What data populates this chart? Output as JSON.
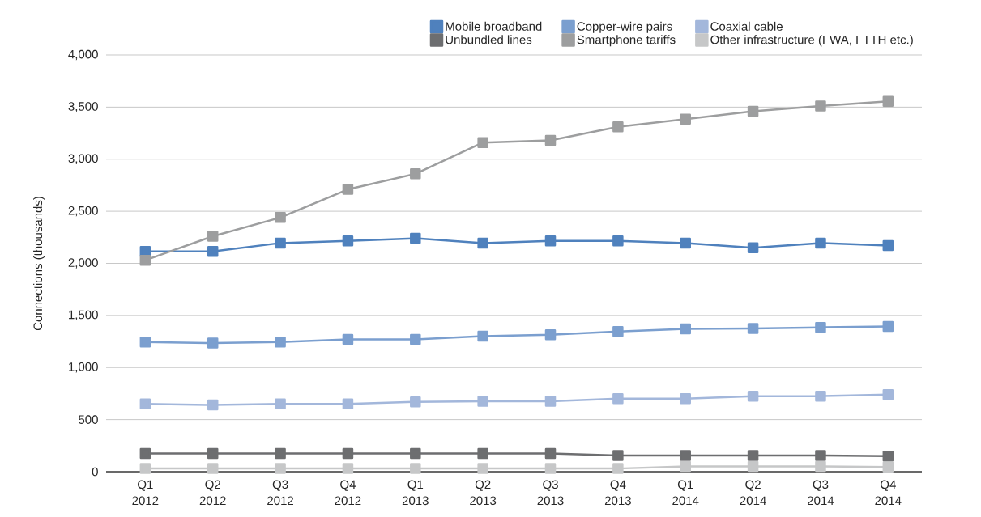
{
  "chart_data": {
    "type": "line",
    "ylabel": "Connections (thousands)",
    "categories": [
      "Q1 2012",
      "Q2 2012",
      "Q3 2012",
      "Q4 2012",
      "Q1 2013",
      "Q2 2013",
      "Q3 2013",
      "Q4 2013",
      "Q1 2014",
      "Q2 2014",
      "Q3 2014",
      "Q4 2014"
    ],
    "series": [
      {
        "name": "Mobile broadband",
        "color": "#4f81bd",
        "values": [
          2115,
          2115,
          2195,
          2215,
          2240,
          2195,
          2215,
          2215,
          2195,
          2150,
          2195,
          2170
        ]
      },
      {
        "name": "Copper-wire pairs",
        "color": "#7b9fcf",
        "values": [
          1245,
          1235,
          1245,
          1270,
          1270,
          1300,
          1315,
          1345,
          1370,
          1375,
          1385,
          1395
        ]
      },
      {
        "name": "Coaxial cable",
        "color": "#a3b7db",
        "values": [
          650,
          640,
          650,
          650,
          670,
          675,
          675,
          700,
          700,
          725,
          725,
          740
        ]
      },
      {
        "name": "Unbundled lines",
        "color": "#6d6e70",
        "values": [
          175,
          175,
          175,
          175,
          175,
          175,
          175,
          155,
          155,
          155,
          155,
          150
        ]
      },
      {
        "name": "Smartphone tariffs",
        "color": "#9d9e9f",
        "values": [
          2030,
          2260,
          2440,
          2710,
          2860,
          3160,
          3180,
          3310,
          3385,
          3460,
          3510,
          3555
        ]
      },
      {
        "name": "Other infrastructure (FWA, FTTH etc.)",
        "color": "#c6c7c8",
        "values": [
          30,
          30,
          30,
          30,
          30,
          30,
          30,
          30,
          50,
          50,
          50,
          45
        ]
      }
    ],
    "ylim": [
      0,
      4000
    ],
    "yticks": [
      0,
      500,
      {
        "value": 1000,
        "label": "1,000"
      },
      {
        "value": 1500,
        "label": "1,500"
      },
      {
        "value": 2000,
        "label": "2,000"
      },
      {
        "value": 2500,
        "label": "2,500"
      },
      {
        "value": 3000,
        "label": "3,000"
      },
      {
        "value": 3500,
        "label": "3,500"
      },
      {
        "value": 4000,
        "label": "4,000"
      }
    ],
    "grid": "y",
    "legend": "top right",
    "marker": "square",
    "line_style": "solid"
  }
}
